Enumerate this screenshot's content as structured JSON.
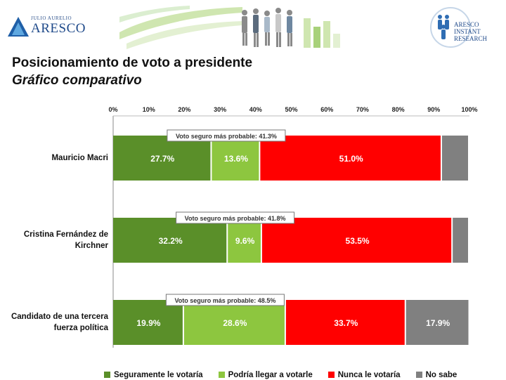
{
  "header": {
    "logo_left_small": "JULIO AURELIO",
    "logo_left_big": "ARESCO",
    "logo_right_text": [
      "ARESCO",
      "INSTANT",
      "RESEARCH"
    ]
  },
  "title": "Posicionamiento de voto a presidente",
  "subtitle": "Gráfico comparativo",
  "chart_data": {
    "type": "bar",
    "orientation": "horizontal",
    "stacked": true,
    "xlim": [
      0,
      100
    ],
    "xticks": [
      "0%",
      "10%",
      "20%",
      "30%",
      "40%",
      "50%",
      "60%",
      "70%",
      "80%",
      "90%",
      "100%"
    ],
    "categories": [
      {
        "name": "Mauricio Macri",
        "lines": [
          "Mauricio Macri"
        ]
      },
      {
        "name": "Cristina Fernández de Kirchner",
        "lines": [
          "Cristina Fernández de",
          "Kirchner"
        ]
      },
      {
        "name": "Candidato de una tercera fuerza política",
        "lines": [
          "Candidato de una tercera",
          "fuerza política"
        ]
      }
    ],
    "series": [
      {
        "name": "Seguramente le votaría",
        "color": "#5a8f29",
        "values": [
          27.7,
          32.2,
          19.9
        ],
        "labels": [
          "27.7%",
          "32.2%",
          "19.9%"
        ]
      },
      {
        "name": "Podría llegar a votarle",
        "color": "#8dc63f",
        "values": [
          13.6,
          9.6,
          28.6
        ],
        "labels": [
          "13.6%",
          "9.6%",
          "28.6%"
        ]
      },
      {
        "name": "Nunca le votaría",
        "color": "#ff0000",
        "values": [
          51.0,
          53.5,
          33.7
        ],
        "labels": [
          "51.0%",
          "53.5%",
          "33.7%"
        ]
      },
      {
        "name": "No sabe",
        "color": "#808080",
        "values": [
          7.7,
          4.7,
          17.9
        ],
        "labels": [
          "",
          "",
          "17.9%"
        ]
      }
    ],
    "annotations": [
      "Voto seguro más probable: 41.3%",
      "Voto seguro más probable: 41.8%",
      "Voto seguro más probable: 48.5%"
    ],
    "legend_position": "bottom",
    "grid": false
  },
  "colors": {
    "dark_green": "#5a8f29",
    "light_green": "#8dc63f",
    "red": "#ff0000",
    "gray": "#808080",
    "brand_blue": "#1f4a8a"
  }
}
